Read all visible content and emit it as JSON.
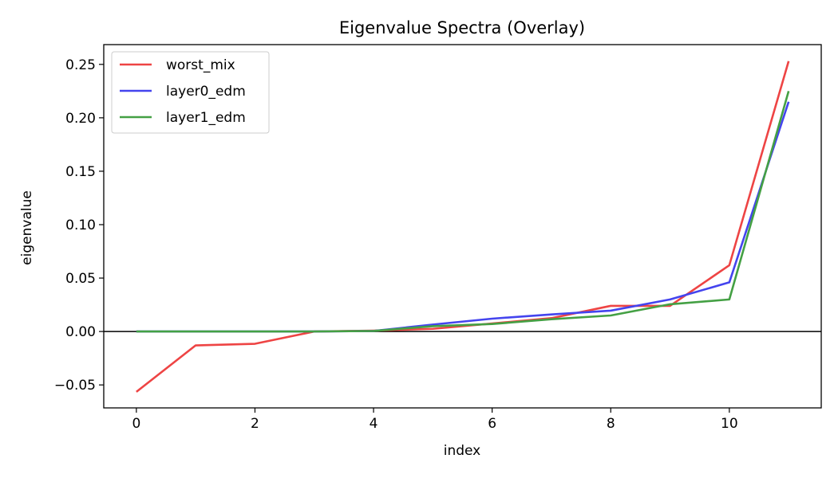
{
  "chart_data": {
    "type": "line",
    "title": "Eigenvalue Spectra (Overlay)",
    "xlabel": "index",
    "ylabel": "eigenvalue",
    "xlim": [
      -0.55,
      11.55
    ],
    "ylim": [
      -0.0715,
      0.2685
    ],
    "xticks": [
      0,
      2,
      4,
      6,
      8,
      10
    ],
    "xtick_labels": [
      "0",
      "2",
      "4",
      "6",
      "8",
      "10"
    ],
    "yticks": [
      -0.05,
      0.0,
      0.05,
      0.1,
      0.15,
      0.2,
      0.25
    ],
    "ytick_labels": [
      "−0.05",
      "0.00",
      "0.05",
      "0.10",
      "0.15",
      "0.20",
      "0.25"
    ],
    "grid": false,
    "legend": "top-left",
    "reference_line": {
      "y": 0,
      "color": "#000000"
    },
    "x": [
      0,
      1,
      2,
      3,
      4,
      5,
      6,
      7,
      8,
      9,
      10,
      11
    ],
    "series": [
      {
        "name": "worst_mix",
        "color": "#ee4444",
        "values": [
          -0.0565,
          -0.013,
          -0.0115,
          0.0,
          0.0008,
          0.0025,
          0.0075,
          0.0125,
          0.024,
          0.024,
          0.062,
          0.253
        ]
      },
      {
        "name": "layer0_edm",
        "color": "#4444ee",
        "values": [
          0.0,
          0.0,
          0.0,
          0.0,
          0.0005,
          0.0065,
          0.012,
          0.016,
          0.0195,
          0.03,
          0.046,
          0.215
        ]
      },
      {
        "name": "layer1_edm",
        "color": "#44a044",
        "values": [
          0.0,
          0.0,
          0.0,
          0.0,
          0.0005,
          0.005,
          0.007,
          0.0115,
          0.015,
          0.0255,
          0.03,
          0.225
        ]
      }
    ]
  }
}
